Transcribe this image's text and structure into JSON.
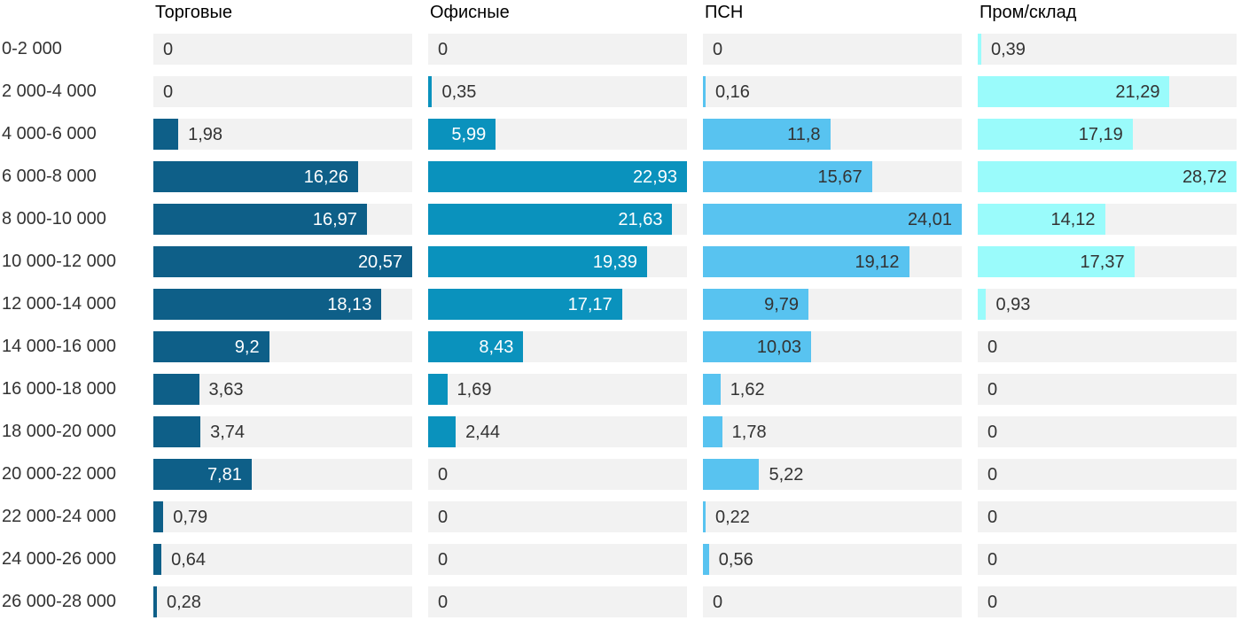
{
  "chart_data": {
    "type": "bar",
    "orientation": "horizontal",
    "title": "",
    "xlabel": "",
    "ylabel": "",
    "grid": false,
    "legend_position": "column-headers",
    "x_scale": "each column scaled to its own max value (bar fills full track at column max)",
    "decimal_separator": ",",
    "track_color": "#f2f2f2",
    "text_color": "#333333",
    "background_color": "#ffffff",
    "categories": [
      "0-2 000",
      "2 000-4 000",
      "4 000-6 000",
      "6 000-8 000",
      "8 000-10 000",
      "10 000-12 000",
      "12 000-14 000",
      "14 000-16 000",
      "16 000-18 000",
      "18 000-20 000",
      "20 000-22 000",
      "22 000-24 000",
      "24 000-26 000",
      "26 000-28 000"
    ],
    "series": [
      {
        "name": "Торговые",
        "color": "#0e5f88",
        "inside_label_color": "#ffffff",
        "values": [
          0,
          0,
          1.98,
          16.26,
          16.97,
          20.57,
          18.13,
          9.2,
          3.63,
          3.74,
          7.81,
          0.79,
          0.64,
          0.28
        ]
      },
      {
        "name": "Офисные",
        "color": "#0a92bd",
        "inside_label_color": "#ffffff",
        "values": [
          0,
          0.35,
          5.99,
          22.93,
          21.63,
          19.39,
          17.17,
          8.43,
          1.69,
          2.44,
          0,
          0,
          0,
          0
        ]
      },
      {
        "name": "ПСН",
        "color": "#58c3f0",
        "inside_label_color": "#333333",
        "values": [
          0,
          0.16,
          11.8,
          15.67,
          24.01,
          19.12,
          9.79,
          10.03,
          1.62,
          1.78,
          5.22,
          0.22,
          0.56,
          0
        ]
      },
      {
        "name": "Пром/склад",
        "color": "#9afbfb",
        "inside_label_color": "#333333",
        "values": [
          0.39,
          21.29,
          17.19,
          28.72,
          14.12,
          17.37,
          0.93,
          0,
          0,
          0,
          0,
          0,
          0,
          0
        ]
      }
    ]
  }
}
